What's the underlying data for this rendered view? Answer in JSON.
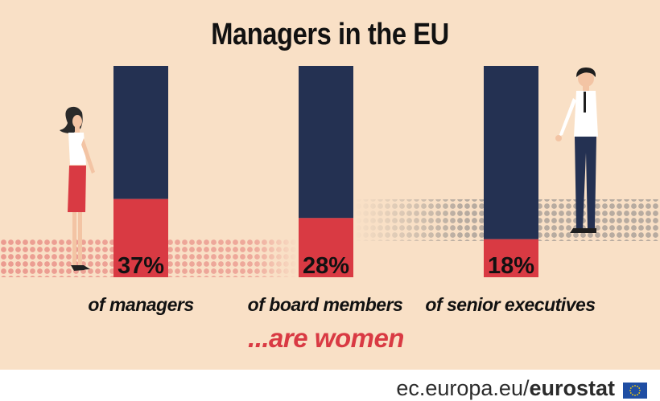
{
  "header": {
    "title": "Managers in the EU"
  },
  "colors": {
    "background": "#f9e0c6",
    "navy": "#243152",
    "red": "#d93a43",
    "pattern_red": "#eb9b90",
    "pattern_grey": "#b7aba0"
  },
  "chart_data": {
    "type": "bar",
    "stacked": true,
    "title": "Managers in the EU",
    "categories": [
      "of managers",
      "of board members",
      "of senior executives"
    ],
    "values": [
      37,
      28,
      18
    ],
    "value_labels": [
      "37%",
      "28%",
      "18%"
    ],
    "ylim": [
      0,
      100
    ],
    "subtitle": "...are women"
  },
  "footer": {
    "site": "ec.europa.eu/",
    "brand": "eurostat"
  },
  "icons": [
    "woman-figure-icon",
    "man-figure-icon",
    "eu-flag-icon"
  ]
}
